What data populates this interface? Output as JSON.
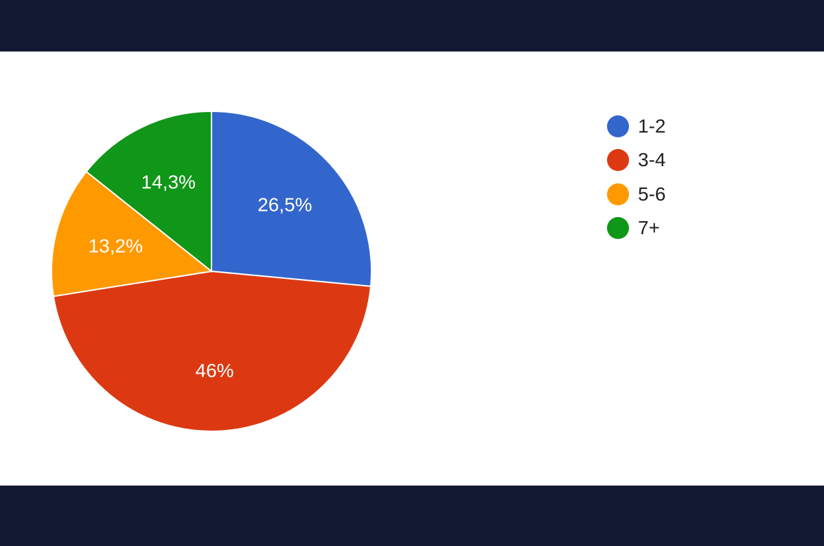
{
  "chart_data": {
    "type": "pie",
    "title": "",
    "slices": [
      {
        "label": "1-2",
        "value": 26.5,
        "value_label": "26,5%",
        "color": "#3366cc"
      },
      {
        "label": "3-4",
        "value": 46.0,
        "value_label": "46%",
        "color": "#dc3912"
      },
      {
        "label": "5-6",
        "value": 13.2,
        "value_label": "13,2%",
        "color": "#ff9900"
      },
      {
        "label": "7+",
        "value": 14.3,
        "value_label": "14,3%",
        "color": "#109618"
      }
    ],
    "start_angle_deg": 90,
    "direction": "clockwise",
    "legend": {
      "placement": "right",
      "items": [
        "1-2",
        "3-4",
        "5-6",
        "7+"
      ]
    }
  }
}
